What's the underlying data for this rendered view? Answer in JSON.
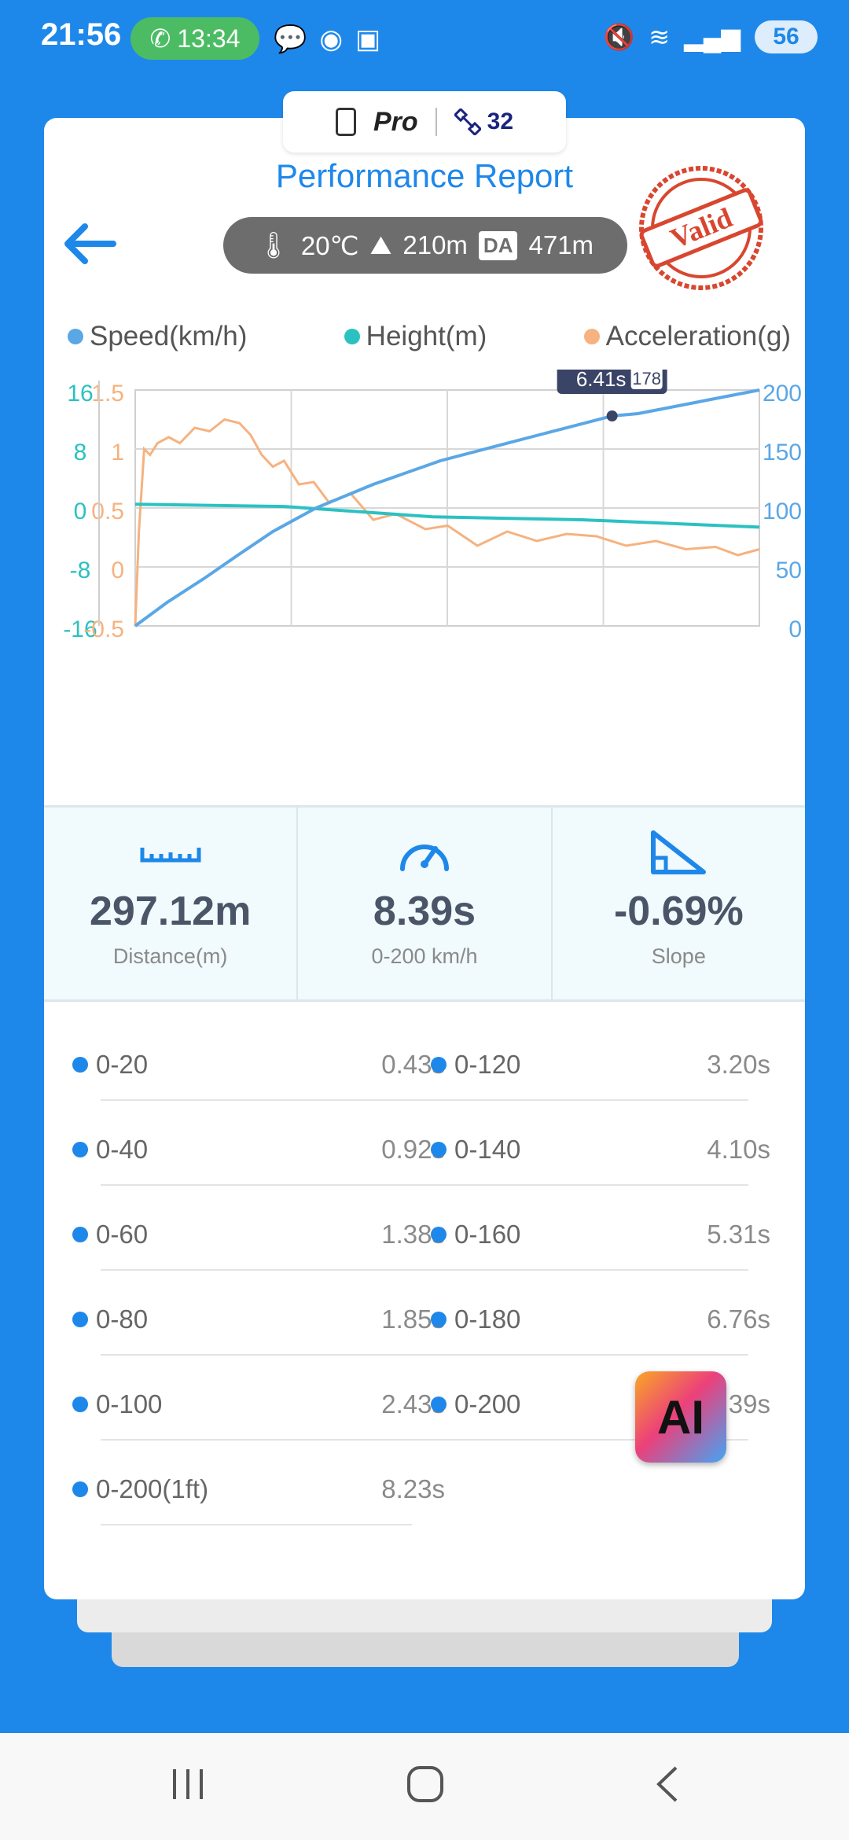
{
  "status_bar": {
    "time": "21:56",
    "call_time": "13:34",
    "battery": "56"
  },
  "mode_tab": {
    "label": "Pro",
    "satellites": "32"
  },
  "header": {
    "title": "Performance Report",
    "temperature": "20℃",
    "altitude": "210m",
    "da_badge": "DA",
    "density_altitude": "471m",
    "stamp_text": "Valid"
  },
  "legend": {
    "speed": "Speed(km/h)",
    "height": "Height(m)",
    "acceleration": "Acceleration(g)"
  },
  "colors": {
    "speed": "#5aa7e6",
    "height": "#2cc1c1",
    "acceleration": "#f6b27f",
    "accent": "#1e88ea"
  },
  "chart_data": {
    "type": "line",
    "x_range": [
      0,
      8.39
    ],
    "tooltip": "6.41s",
    "tooltip_badge": "178",
    "axes": {
      "height_ticks": [
        "16",
        "8",
        "0",
        "-8",
        "-16"
      ],
      "height_range": [
        -16,
        16
      ],
      "accel_ticks": [
        "1.5",
        "1",
        "0.5",
        "0",
        "-0.5"
      ],
      "accel_range": [
        -0.5,
        1.5
      ],
      "speed_ticks": [
        "200",
        "150",
        "100",
        "50",
        "0"
      ],
      "speed_range": [
        0,
        200
      ]
    },
    "series": [
      {
        "name": "Speed(km/h)",
        "x": [
          0,
          0.43,
          0.92,
          1.38,
          1.85,
          2.43,
          3.2,
          4.1,
          5.31,
          6.41,
          6.76,
          8.39
        ],
        "y": [
          0,
          20,
          40,
          60,
          80,
          100,
          120,
          140,
          160,
          178,
          180,
          200
        ]
      },
      {
        "name": "Height(m)",
        "x": [
          0,
          2,
          4,
          6,
          8.39
        ],
        "y": [
          0.5,
          0.2,
          -1.2,
          -1.6,
          -2.6
        ]
      },
      {
        "name": "Acceleration(g)",
        "x": [
          0,
          0.05,
          0.12,
          0.2,
          0.3,
          0.45,
          0.6,
          0.8,
          1.0,
          1.2,
          1.4,
          1.55,
          1.7,
          1.85,
          2.0,
          2.2,
          2.4,
          2.6,
          2.9,
          3.2,
          3.5,
          3.9,
          4.2,
          4.6,
          5.0,
          5.4,
          5.8,
          6.2,
          6.6,
          7.0,
          7.4,
          7.8,
          8.1,
          8.39
        ],
        "y": [
          -0.5,
          0.3,
          1.0,
          0.95,
          1.05,
          1.1,
          1.05,
          1.18,
          1.15,
          1.25,
          1.22,
          1.12,
          0.95,
          0.85,
          0.9,
          0.7,
          0.72,
          0.55,
          0.62,
          0.4,
          0.45,
          0.32,
          0.35,
          0.18,
          0.3,
          0.22,
          0.28,
          0.26,
          0.18,
          0.22,
          0.15,
          0.17,
          0.1,
          0.15
        ]
      }
    ]
  },
  "stats": [
    {
      "value": "297.12m",
      "label": "Distance(m)",
      "icon": "ruler-icon"
    },
    {
      "value": "8.39s",
      "label": "0-200 km/h",
      "icon": "speedometer-icon"
    },
    {
      "value": "-0.69%",
      "label": "Slope",
      "icon": "slope-icon"
    }
  ],
  "splits_left": [
    {
      "label": "0-20",
      "time": "0.43s"
    },
    {
      "label": "0-40",
      "time": "0.92s"
    },
    {
      "label": "0-60",
      "time": "1.38s"
    },
    {
      "label": "0-80",
      "time": "1.85s"
    },
    {
      "label": "0-100",
      "time": "2.43s"
    },
    {
      "label": "0-200(1ft)",
      "time": "8.23s"
    }
  ],
  "splits_right": [
    {
      "label": "0-120",
      "time": "3.20s"
    },
    {
      "label": "0-140",
      "time": "4.10s"
    },
    {
      "label": "0-160",
      "time": "5.31s"
    },
    {
      "label": "0-180",
      "time": "6.76s"
    },
    {
      "label": "0-200",
      "time": "8.39s"
    }
  ],
  "ai_button": "AI"
}
